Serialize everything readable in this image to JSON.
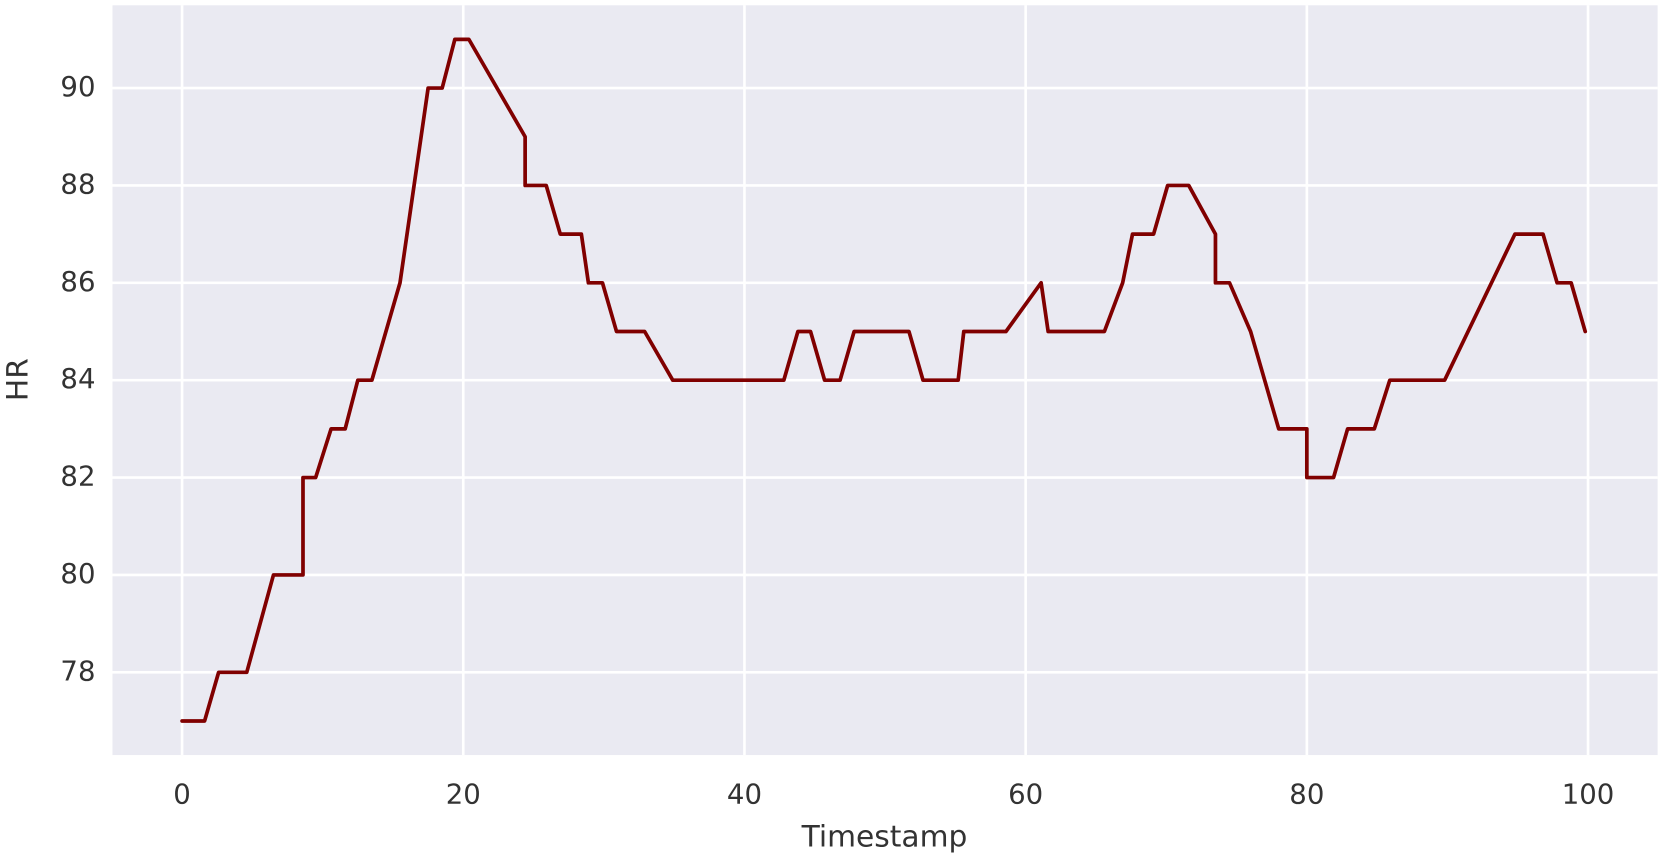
{
  "chart_data": {
    "type": "line",
    "xlabel": "Timestamp",
    "ylabel": "HR",
    "x": [
      0,
      1.6,
      2.6,
      4.6,
      6.5,
      8.6,
      8.6,
      9.5,
      10.6,
      11.6,
      12.5,
      13.5,
      15.5,
      17.5,
      18.5,
      19.4,
      20.4,
      24.4,
      24.4,
      25.9,
      26.9,
      28.4,
      28.9,
      29.9,
      30.9,
      32.9,
      34.9,
      42.8,
      43.8,
      44.7,
      45.7,
      46.8,
      47.8,
      51.7,
      52.7,
      55.2,
      55.6,
      58.6,
      61.1,
      61.6,
      65.6,
      66.9,
      67.6,
      69.1,
      70.1,
      71.6,
      73.5,
      73.5,
      74.5,
      76.0,
      78.0,
      80.0,
      80.0,
      81.9,
      82.9,
      84.8,
      85.9,
      89.8,
      94.8,
      96.8,
      97.8,
      98.8,
      99.8
    ],
    "series": [
      {
        "name": "HR",
        "color": "#800000",
        "values": [
          77,
          77,
          78,
          78,
          80,
          80,
          82,
          82,
          83,
          83,
          84,
          84,
          86,
          90,
          90,
          91,
          91,
          89,
          88,
          88,
          87,
          87,
          86,
          86,
          85,
          85,
          84,
          84,
          85,
          85,
          84,
          84,
          85,
          85,
          84,
          84,
          85,
          85,
          86,
          85,
          85,
          86,
          87,
          87,
          88,
          88,
          87,
          86,
          86,
          85,
          83,
          83,
          82,
          82,
          83,
          83,
          84,
          84,
          87,
          87,
          86,
          86,
          85
        ]
      }
    ],
    "xlim": [
      -4.95,
      104.95
    ],
    "ylim": [
      76.3,
      91.7
    ],
    "xticks": [
      0,
      20,
      40,
      60,
      80,
      100
    ],
    "yticks": [
      78,
      80,
      82,
      84,
      86,
      88,
      90
    ],
    "grid": true
  }
}
